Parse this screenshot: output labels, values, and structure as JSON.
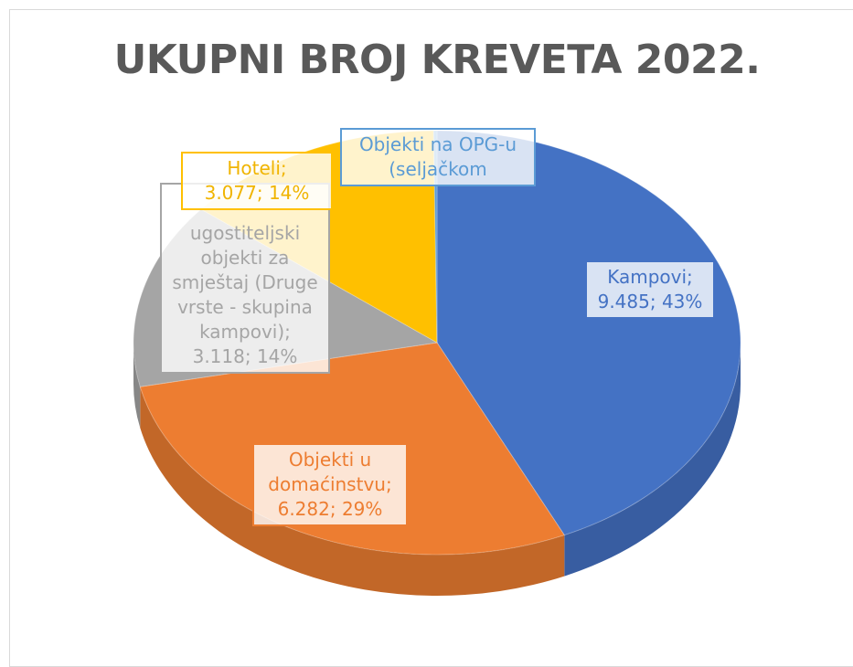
{
  "chart_data": {
    "type": "pie",
    "title": "UKUPNI BROJ KREVETA 2022.",
    "categories": [
      "Kampovi",
      "Objekti u domaćinstvu",
      "ugostiteljski objekti za smještaj (Druge vrste - skupina kampovi)",
      "Hoteli",
      "Objekti na OPG-u (seljačkom"
    ],
    "values": [
      9485,
      6282,
      3118,
      3077,
      40
    ],
    "value_labels": [
      "9.485; 43%",
      "6.282; 29%",
      "3.118; 14%",
      "3.077; 14%",
      null
    ],
    "colors": [
      "#4472c4",
      "#ed7d31",
      "#a5a5a5",
      "#ffc000",
      "#5b9bd5"
    ],
    "label_colors": [
      "#4472c4",
      "#ed7d31",
      "#a5a5a5",
      "#f0b400",
      "#5b9bd5"
    ]
  }
}
